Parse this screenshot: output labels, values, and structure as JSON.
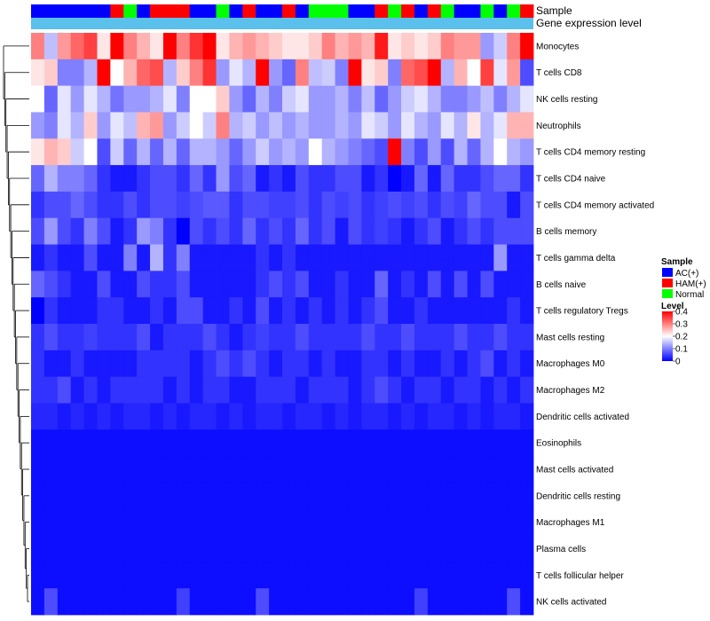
{
  "chart_data": {
    "type": "heatmap",
    "title": "",
    "annotation_labels": {
      "sample": "Sample",
      "gene_expression": "Gene expression level"
    },
    "sample_legend": {
      "title": "Sample",
      "entries": [
        {
          "label": "AC(+)",
          "color": "#0000ff"
        },
        {
          "label": "HAM(+)",
          "color": "#ff0000"
        },
        {
          "label": "Normal",
          "color": "#00ff00"
        }
      ]
    },
    "level_legend": {
      "title": "Level",
      "min": 0,
      "max": 0.4,
      "ticks": [
        "0",
        "0.1",
        "0.2",
        "0.3",
        "0.4"
      ],
      "colors": [
        "#0000ff",
        "#ffffff",
        "#ff0000"
      ]
    },
    "gene_expression_color": "#5bc0eb",
    "samples": [
      "AC(+)",
      "AC(+)",
      "AC(+)",
      "AC(+)",
      "AC(+)",
      "AC(+)",
      "HAM(+)",
      "Normal",
      "AC(+)",
      "HAM(+)",
      "HAM(+)",
      "HAM(+)",
      "AC(+)",
      "AC(+)",
      "Normal",
      "AC(+)",
      "HAM(+)",
      "AC(+)",
      "AC(+)",
      "HAM(+)",
      "AC(+)",
      "Normal",
      "Normal",
      "Normal",
      "AC(+)",
      "AC(+)",
      "HAM(+)",
      "Normal",
      "HAM(+)",
      "AC(+)",
      "HAM(+)",
      "Normal",
      "AC(+)",
      "AC(+)",
      "Normal",
      "AC(+)",
      "Normal",
      "HAM(+)"
    ],
    "rows": [
      {
        "name": "Monocytes",
        "values": [
          0.3,
          0.15,
          0.28,
          0.32,
          0.35,
          0.22,
          0.4,
          0.3,
          0.26,
          0.22,
          0.4,
          0.3,
          0.36,
          0.4,
          0.22,
          0.26,
          0.28,
          0.26,
          0.24,
          0.22,
          0.22,
          0.24,
          0.3,
          0.26,
          0.28,
          0.26,
          0.38,
          0.22,
          0.24,
          0.22,
          0.24,
          0.3,
          0.28,
          0.28,
          0.12,
          0.16,
          0.3,
          0.4
        ]
      },
      {
        "name": "T cells CD8",
        "values": [
          0.22,
          0.24,
          0.1,
          0.1,
          0.14,
          0.4,
          0.2,
          0.26,
          0.32,
          0.34,
          0.14,
          0.24,
          0.3,
          0.36,
          0.12,
          0.18,
          0.14,
          0.4,
          0.12,
          0.08,
          0.3,
          0.15,
          0.16,
          0.1,
          0.4,
          0.22,
          0.24,
          0.1,
          0.32,
          0.34,
          0.4,
          0.14,
          0.26,
          0.2,
          0.35,
          0.18,
          0.28,
          0.06
        ]
      },
      {
        "name": "NK cells resting",
        "values": [
          0.2,
          0.08,
          0.18,
          0.12,
          0.18,
          0.14,
          0.09,
          0.12,
          0.12,
          0.14,
          0.18,
          0.1,
          0.2,
          0.2,
          0.24,
          0.12,
          0.08,
          0.14,
          0.1,
          0.16,
          0.18,
          0.12,
          0.12,
          0.14,
          0.1,
          0.15,
          0.08,
          0.12,
          0.16,
          0.18,
          0.14,
          0.1,
          0.1,
          0.12,
          0.15,
          0.1,
          0.14,
          0.18
        ]
      },
      {
        "name": "Neutrophils",
        "values": [
          0.12,
          0.1,
          0.18,
          0.14,
          0.24,
          0.12,
          0.18,
          0.15,
          0.26,
          0.28,
          0.12,
          0.16,
          0.2,
          0.16,
          0.3,
          0.14,
          0.16,
          0.12,
          0.15,
          0.12,
          0.14,
          0.12,
          0.12,
          0.14,
          0.12,
          0.18,
          0.16,
          0.12,
          0.18,
          0.14,
          0.12,
          0.18,
          0.14,
          0.22,
          0.14,
          0.18,
          0.26,
          0.26
        ]
      },
      {
        "name": "T cells CD4 memory resting",
        "values": [
          0.22,
          0.26,
          0.24,
          0.16,
          0.2,
          0.06,
          0.16,
          0.08,
          0.14,
          0.08,
          0.14,
          0.08,
          0.14,
          0.14,
          0.12,
          0.08,
          0.12,
          0.16,
          0.12,
          0.14,
          0.12,
          0.2,
          0.14,
          0.12,
          0.1,
          0.08,
          0.06,
          0.4,
          0.1,
          0.06,
          0.12,
          0.06,
          0.14,
          0.08,
          0.14,
          0.2,
          0.14,
          0.12
        ]
      },
      {
        "name": "T cells CD4 naive",
        "values": [
          0.08,
          0.14,
          0.1,
          0.1,
          0.08,
          0.04,
          0.02,
          0.02,
          0.04,
          0.06,
          0.06,
          0.04,
          0.08,
          0.04,
          0.12,
          0.06,
          0.08,
          0.02,
          0.04,
          0.02,
          0.06,
          0.04,
          0.04,
          0.06,
          0.06,
          0.02,
          0.04,
          0.0,
          0.02,
          0.08,
          0.02,
          0.08,
          0.04,
          0.04,
          0.06,
          0.08,
          0.08,
          0.04
        ]
      },
      {
        "name": "T cells CD4 memory activated",
        "values": [
          0.04,
          0.06,
          0.06,
          0.08,
          0.06,
          0.04,
          0.04,
          0.06,
          0.04,
          0.06,
          0.06,
          0.05,
          0.06,
          0.07,
          0.07,
          0.04,
          0.06,
          0.06,
          0.05,
          0.05,
          0.06,
          0.04,
          0.06,
          0.05,
          0.06,
          0.04,
          0.05,
          0.06,
          0.05,
          0.06,
          0.04,
          0.06,
          0.05,
          0.08,
          0.06,
          0.06,
          0.02,
          0.06
        ]
      },
      {
        "name": "B cells memory",
        "values": [
          0.06,
          0.12,
          0.06,
          0.04,
          0.1,
          0.06,
          0.02,
          0.04,
          0.12,
          0.1,
          0.04,
          0.0,
          0.06,
          0.04,
          0.06,
          0.04,
          0.08,
          0.04,
          0.06,
          0.04,
          0.08,
          0.04,
          0.06,
          0.02,
          0.06,
          0.04,
          0.05,
          0.04,
          0.02,
          0.04,
          0.06,
          0.02,
          0.04,
          0.06,
          0.04,
          0.06,
          0.06,
          0.06
        ]
      },
      {
        "name": "T cells gamma delta",
        "values": [
          0.02,
          0.04,
          0.02,
          0.02,
          0.06,
          0.02,
          0.02,
          0.1,
          0.02,
          0.14,
          0.04,
          0.1,
          0.02,
          0.02,
          0.02,
          0.02,
          0.02,
          0.04,
          0.02,
          0.04,
          0.02,
          0.02,
          0.02,
          0.02,
          0.02,
          0.02,
          0.02,
          0.02,
          0.02,
          0.02,
          0.02,
          0.02,
          0.02,
          0.02,
          0.02,
          0.12,
          0.02,
          0.02
        ]
      },
      {
        "name": "B cells naive",
        "values": [
          0.08,
          0.06,
          0.04,
          0.02,
          0.02,
          0.06,
          0.02,
          0.02,
          0.06,
          0.04,
          0.04,
          0.06,
          0.02,
          0.02,
          0.02,
          0.02,
          0.02,
          0.04,
          0.06,
          0.04,
          0.06,
          0.02,
          0.02,
          0.04,
          0.02,
          0.02,
          0.08,
          0.02,
          0.04,
          0.02,
          0.06,
          0.02,
          0.06,
          0.02,
          0.06,
          0.02,
          0.02,
          0.02
        ]
      },
      {
        "name": "T cells regulatory  Tregs",
        "values": [
          0.0,
          0.04,
          0.02,
          0.02,
          0.02,
          0.04,
          0.04,
          0.02,
          0.02,
          0.04,
          0.02,
          0.06,
          0.06,
          0.02,
          0.02,
          0.04,
          0.02,
          0.06,
          0.02,
          0.04,
          0.02,
          0.04,
          0.02,
          0.04,
          0.02,
          0.04,
          0.06,
          0.02,
          0.02,
          0.04,
          0.02,
          0.02,
          0.02,
          0.02,
          0.02,
          0.02,
          0.04,
          0.02
        ]
      },
      {
        "name": "Mast cells resting",
        "values": [
          0.04,
          0.06,
          0.04,
          0.04,
          0.05,
          0.04,
          0.04,
          0.04,
          0.06,
          0.02,
          0.04,
          0.04,
          0.04,
          0.06,
          0.04,
          0.02,
          0.04,
          0.05,
          0.04,
          0.04,
          0.06,
          0.04,
          0.04,
          0.04,
          0.04,
          0.06,
          0.04,
          0.04,
          0.06,
          0.04,
          0.04,
          0.04,
          0.06,
          0.04,
          0.04,
          0.06,
          0.04,
          0.04
        ]
      },
      {
        "name": "Macrophages M0",
        "values": [
          0.04,
          0.02,
          0.02,
          0.04,
          0.02,
          0.02,
          0.02,
          0.02,
          0.04,
          0.04,
          0.04,
          0.04,
          0.02,
          0.04,
          0.06,
          0.04,
          0.06,
          0.04,
          0.02,
          0.04,
          0.04,
          0.02,
          0.04,
          0.02,
          0.02,
          0.04,
          0.04,
          0.02,
          0.04,
          0.02,
          0.02,
          0.04,
          0.02,
          0.04,
          0.06,
          0.02,
          0.04,
          0.02
        ]
      },
      {
        "name": "Macrophages M2",
        "values": [
          0.04,
          0.04,
          0.06,
          0.02,
          0.04,
          0.02,
          0.04,
          0.04,
          0.04,
          0.04,
          0.02,
          0.04,
          0.02,
          0.04,
          0.04,
          0.02,
          0.02,
          0.04,
          0.04,
          0.04,
          0.02,
          0.04,
          0.04,
          0.04,
          0.02,
          0.04,
          0.06,
          0.04,
          0.02,
          0.04,
          0.04,
          0.02,
          0.04,
          0.04,
          0.02,
          0.04,
          0.02,
          0.04
        ]
      },
      {
        "name": "Dendritic cells activated",
        "values": [
          0.03,
          0.03,
          0.02,
          0.03,
          0.02,
          0.03,
          0.02,
          0.03,
          0.03,
          0.02,
          0.03,
          0.02,
          0.03,
          0.03,
          0.02,
          0.03,
          0.02,
          0.03,
          0.03,
          0.02,
          0.03,
          0.03,
          0.02,
          0.03,
          0.02,
          0.03,
          0.03,
          0.02,
          0.03,
          0.02,
          0.03,
          0.03,
          0.02,
          0.03,
          0.02,
          0.03,
          0.03,
          0.02
        ]
      },
      {
        "name": "Eosinophils",
        "values": [
          0.01,
          0.01,
          0.01,
          0.01,
          0.01,
          0.01,
          0.01,
          0.01,
          0.01,
          0.01,
          0.01,
          0.01,
          0.01,
          0.01,
          0.01,
          0.01,
          0.01,
          0.01,
          0.01,
          0.01,
          0.01,
          0.01,
          0.01,
          0.01,
          0.01,
          0.01,
          0.01,
          0.01,
          0.01,
          0.01,
          0.01,
          0.01,
          0.01,
          0.01,
          0.01,
          0.01,
          0.01,
          0.01
        ]
      },
      {
        "name": "Mast cells activated",
        "values": [
          0.01,
          0.01,
          0.01,
          0.01,
          0.01,
          0.01,
          0.01,
          0.01,
          0.01,
          0.01,
          0.01,
          0.01,
          0.01,
          0.01,
          0.01,
          0.01,
          0.01,
          0.01,
          0.01,
          0.01,
          0.01,
          0.01,
          0.01,
          0.01,
          0.01,
          0.01,
          0.01,
          0.01,
          0.01,
          0.01,
          0.01,
          0.01,
          0.01,
          0.01,
          0.01,
          0.01,
          0.01,
          0.01
        ]
      },
      {
        "name": "Dendritic cells resting",
        "values": [
          0.01,
          0.01,
          0.01,
          0.01,
          0.01,
          0.01,
          0.01,
          0.01,
          0.01,
          0.01,
          0.01,
          0.01,
          0.01,
          0.01,
          0.01,
          0.01,
          0.01,
          0.01,
          0.01,
          0.01,
          0.01,
          0.01,
          0.01,
          0.01,
          0.01,
          0.01,
          0.01,
          0.01,
          0.01,
          0.01,
          0.01,
          0.01,
          0.01,
          0.01,
          0.01,
          0.01,
          0.01,
          0.01
        ]
      },
      {
        "name": "Macrophages M1",
        "values": [
          0.01,
          0.01,
          0.01,
          0.01,
          0.01,
          0.01,
          0.01,
          0.01,
          0.01,
          0.01,
          0.01,
          0.01,
          0.01,
          0.01,
          0.01,
          0.01,
          0.01,
          0.01,
          0.01,
          0.01,
          0.01,
          0.01,
          0.01,
          0.01,
          0.01,
          0.01,
          0.01,
          0.01,
          0.01,
          0.01,
          0.01,
          0.01,
          0.01,
          0.01,
          0.01,
          0.01,
          0.01,
          0.01
        ]
      },
      {
        "name": "Plasma cells",
        "values": [
          0.01,
          0.01,
          0.01,
          0.01,
          0.01,
          0.01,
          0.01,
          0.01,
          0.01,
          0.01,
          0.01,
          0.01,
          0.01,
          0.01,
          0.01,
          0.01,
          0.01,
          0.01,
          0.01,
          0.01,
          0.01,
          0.01,
          0.01,
          0.01,
          0.01,
          0.01,
          0.01,
          0.01,
          0.01,
          0.01,
          0.01,
          0.01,
          0.01,
          0.01,
          0.01,
          0.01,
          0.01,
          0.01
        ]
      },
      {
        "name": "T cells follicular helper",
        "values": [
          0.01,
          0.01,
          0.01,
          0.01,
          0.01,
          0.01,
          0.01,
          0.01,
          0.01,
          0.01,
          0.01,
          0.01,
          0.01,
          0.01,
          0.01,
          0.01,
          0.01,
          0.01,
          0.01,
          0.01,
          0.01,
          0.01,
          0.01,
          0.01,
          0.01,
          0.01,
          0.01,
          0.01,
          0.01,
          0.01,
          0.01,
          0.01,
          0.01,
          0.01,
          0.01,
          0.01,
          0.01,
          0.01
        ]
      },
      {
        "name": "NK cells activated",
        "values": [
          0.01,
          0.06,
          0.01,
          0.01,
          0.01,
          0.01,
          0.01,
          0.01,
          0.01,
          0.01,
          0.01,
          0.05,
          0.01,
          0.01,
          0.01,
          0.01,
          0.01,
          0.06,
          0.01,
          0.01,
          0.01,
          0.01,
          0.01,
          0.01,
          0.01,
          0.01,
          0.01,
          0.01,
          0.01,
          0.05,
          0.01,
          0.01,
          0.01,
          0.01,
          0.01,
          0.01,
          0.06,
          0.01
        ]
      }
    ]
  }
}
